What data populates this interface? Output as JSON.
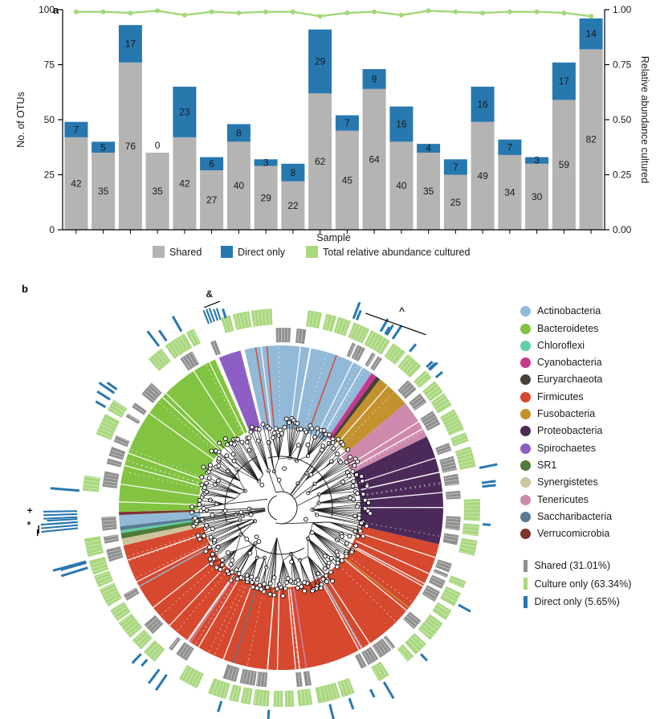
{
  "figure": {
    "panel_a_label": "a",
    "panel_b_label": "b"
  },
  "panel_a": {
    "label": "a",
    "y_left_title": "No. of OTUs",
    "y_right_title": "Relative abundance cultured",
    "x_title": "Sample",
    "legend": [
      {
        "label": "Shared",
        "color": "#b4b4b3"
      },
      {
        "label": "Direct only",
        "color": "#2878b0"
      },
      {
        "label": "Total relative abundance cultured",
        "color": "#a9d87f"
      }
    ]
  },
  "panel_b": {
    "label": "b",
    "annotations": {
      "amp": "&",
      "caret": "^",
      "star": "*",
      "plus": "+"
    },
    "phyla_legend": [
      {
        "label": "Actinobacteria",
        "color": "#92b9d8"
      },
      {
        "label": "Bacteroidetes",
        "color": "#82c341"
      },
      {
        "label": "Chloroflexi",
        "color": "#5fcfa4"
      },
      {
        "label": "Cyanobacteria",
        "color": "#c7368f"
      },
      {
        "label": "Euryarchaeota",
        "color": "#474038"
      },
      {
        "label": "Firmicutes",
        "color": "#d6492f"
      },
      {
        "label": "Fusobacteria",
        "color": "#c3922e"
      },
      {
        "label": "Proteobacteria",
        "color": "#4b2a59"
      },
      {
        "label": "Spirochaetes",
        "color": "#8d5fc4"
      },
      {
        "label": "SR1",
        "color": "#4e7a3a"
      },
      {
        "label": "Synergistetes",
        "color": "#cfc49c"
      },
      {
        "label": "Tenericutes",
        "color": "#cd8aad"
      },
      {
        "label": "Saccharibacteria",
        "color": "#597a94"
      },
      {
        "label": "Verrucomicrobia",
        "color": "#7e352c"
      }
    ],
    "category_legend": [
      {
        "label": "Shared (31.01%)",
        "color": "#8f8f8f"
      },
      {
        "label": "Culture only (63.34%)",
        "color": "#a9d87f"
      },
      {
        "label": "Direct only (5.65%)",
        "color": "#2878b0"
      }
    ],
    "sectors": [
      {
        "phylum": "Actinobacteria",
        "start": -13,
        "end": 34
      },
      {
        "phylum": "Cyanobacteria",
        "start": 34,
        "end": 36
      },
      {
        "phylum": "Euryarchaeota",
        "start": 36,
        "end": 37.6
      },
      {
        "phylum": "Fusobacteria",
        "start": 37.6,
        "end": 50
      },
      {
        "phylum": "Tenericutes",
        "start": 50,
        "end": 64
      },
      {
        "phylum": "Proteobacteria",
        "start": 64,
        "end": 103
      },
      {
        "phylum": "Firmicutes",
        "start": 103,
        "end": 256.5
      },
      {
        "phylum": "Synergistetes",
        "start": 256.5,
        "end": 259
      },
      {
        "phylum": "SR1",
        "start": 259,
        "end": 261
      },
      {
        "phylum": "Chloroflexi",
        "start": 261,
        "end": 262
      },
      {
        "phylum": "Saccharibacteria",
        "start": 262,
        "end": 263.4
      },
      {
        "phylum": "Actinobacteria",
        "start": 263.4,
        "end": 267.4
      },
      {
        "phylum": "Verrucomicrobia",
        "start": 267.4,
        "end": 268.5
      },
      {
        "phylum": "Bacteroidetes",
        "start": 268.5,
        "end": 336
      },
      {
        "phylum": "Spirochaetes",
        "start": 337.5,
        "end": 345.5
      }
    ],
    "stripes": [
      {
        "a": -9,
        "phylum": "Firmicutes"
      },
      {
        "a": -5,
        "phylum": "Firmicutes"
      },
      {
        "a": 20,
        "phylum": "Firmicutes"
      },
      {
        "a": 128,
        "phylum": "Fusobacteria"
      },
      {
        "a": 150,
        "phylum": "Actinobacteria"
      },
      {
        "a": 171,
        "phylum": "Tenericutes"
      },
      {
        "a": 197,
        "phylum": "Saccharibacteria"
      },
      {
        "a": 214,
        "phylum": "Tenericutes"
      },
      {
        "a": 241,
        "phylum": "Actinobacteria"
      }
    ]
  },
  "chart_data": [
    {
      "type": "bar",
      "title": "",
      "xlabel": "Sample",
      "ylabel": "No. of OTUs",
      "ylabel_right": "Relative abundance cultured",
      "ylim": [
        0,
        100
      ],
      "ylim_right": [
        0.0,
        1.0
      ],
      "yticks_left": [
        0,
        25,
        50,
        75,
        100
      ],
      "yticks_right": [
        "0.00",
        "0.25",
        "0.50",
        "0.75",
        "1.00"
      ],
      "n_samples": 20,
      "stacked": true,
      "legend_position": "bottom",
      "grid": false,
      "series": [
        {
          "name": "Shared",
          "color": "#b4b4b3",
          "values": [
            42,
            35,
            76,
            35,
            42,
            27,
            40,
            29,
            22,
            62,
            45,
            64,
            40,
            35,
            25,
            49,
            34,
            30,
            59,
            82
          ]
        },
        {
          "name": "Direct only",
          "color": "#2878b0",
          "values": [
            7,
            5,
            17,
            0,
            23,
            6,
            8,
            3,
            8,
            29,
            7,
            9,
            16,
            4,
            7,
            16,
            7,
            3,
            17,
            14
          ]
        },
        {
          "name": "Total relative abundance cultured",
          "type": "line",
          "axis": "right",
          "color": "#a3d877",
          "values": [
            0.99,
            0.99,
            0.985,
            0.995,
            0.975,
            0.99,
            0.985,
            0.99,
            0.99,
            0.97,
            0.985,
            0.99,
            0.975,
            0.995,
            0.99,
            0.985,
            0.99,
            0.99,
            0.985,
            0.97
          ]
        }
      ]
    },
    {
      "type": "circular-phylogenetic-tree",
      "title": "",
      "inner_ring": "phylum-colored sectors",
      "outer_rings": [
        {
          "name": "Shared",
          "percent": 31.01,
          "color": "#8f8f8f"
        },
        {
          "name": "Culture only",
          "percent": 63.34,
          "color": "#a9d87f"
        },
        {
          "name": "Direct only",
          "percent": 5.65,
          "color": "#2878b0"
        }
      ]
    }
  ]
}
